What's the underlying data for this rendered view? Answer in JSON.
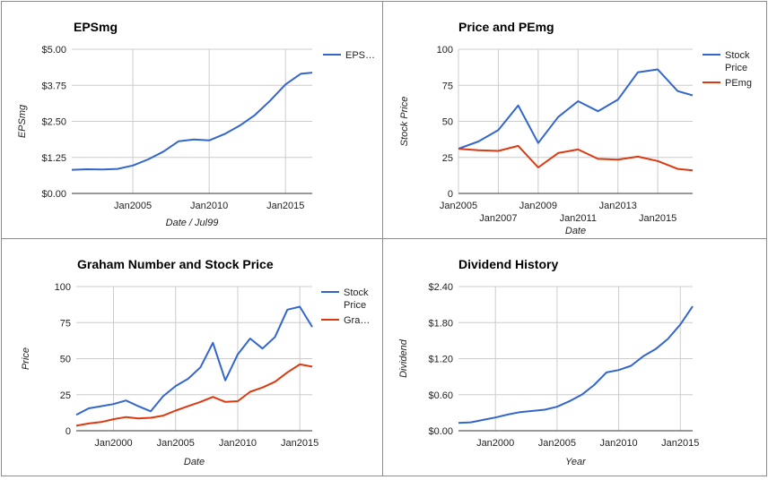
{
  "colors": {
    "blue": "#3366cc",
    "red": "#dc3912",
    "grid": "#cccccc",
    "axis": "#333333"
  },
  "chart_data": [
    {
      "type": "line",
      "title": "EPSmg",
      "xlabel": "Date / Jul99",
      "ylabel": "EPSmg",
      "xlim": [
        "2001-01-01",
        "2016-10-01"
      ],
      "ylim": [
        0,
        5
      ],
      "y_ticks": [
        "$0.00",
        "$1.25",
        "$2.50",
        "$3.75",
        "$5.00"
      ],
      "x_ticks": [
        {
          "label": "Jan2005",
          "at": "2005-01-01"
        },
        {
          "label": "Jan2010",
          "at": "2010-01-01"
        },
        {
          "label": "Jan2015",
          "at": "2015-01-01"
        }
      ],
      "grid": true,
      "legend": "right",
      "series": [
        {
          "name": "EPS…",
          "color": "#3366cc",
          "x": [
            "2001-01-01",
            "2002-01-01",
            "2003-01-01",
            "2004-01-01",
            "2005-01-01",
            "2006-01-01",
            "2007-01-01",
            "2008-01-01",
            "2009-01-01",
            "2010-01-01",
            "2011-01-01",
            "2012-01-01",
            "2013-01-01",
            "2014-01-01",
            "2015-01-01",
            "2016-01-01",
            "2016-10-01"
          ],
          "values": [
            0.82,
            0.84,
            0.83,
            0.85,
            0.97,
            1.18,
            1.45,
            1.81,
            1.87,
            1.84,
            2.06,
            2.35,
            2.72,
            3.22,
            3.78,
            4.15,
            4.19
          ]
        }
      ]
    },
    {
      "type": "line",
      "title": "Price and PEmg",
      "xlabel": "Date",
      "ylabel": "Stock Price",
      "xlim": [
        "2005-01-01",
        "2016-10-01"
      ],
      "ylim": [
        0,
        100
      ],
      "y_ticks": [
        "0",
        "25",
        "50",
        "75",
        "100"
      ],
      "x_ticks": [
        {
          "label": "Jan2005",
          "at": "2005-01-01",
          "row": 1
        },
        {
          "label": "Jan2007",
          "at": "2007-01-01",
          "row": 2
        },
        {
          "label": "Jan2009",
          "at": "2009-01-01",
          "row": 1
        },
        {
          "label": "Jan2011",
          "at": "2011-01-01",
          "row": 2
        },
        {
          "label": "Jan2013",
          "at": "2013-01-01",
          "row": 1
        },
        {
          "label": "Jan2015",
          "at": "2015-01-01",
          "row": 2
        }
      ],
      "grid": true,
      "legend": "right",
      "series": [
        {
          "name": "Stock Price",
          "color": "#3366cc",
          "x": [
            "2005-01-01",
            "2006-01-01",
            "2007-01-01",
            "2008-01-01",
            "2009-01-01",
            "2010-01-01",
            "2011-01-01",
            "2012-01-01",
            "2013-01-01",
            "2014-01-01",
            "2015-01-01",
            "2016-01-01",
            "2016-10-01"
          ],
          "values": [
            31,
            36,
            44,
            61,
            35,
            53,
            64,
            57,
            65,
            84,
            86,
            71,
            68
          ]
        },
        {
          "name": "PEmg",
          "color": "#dc3912",
          "x": [
            "2005-01-01",
            "2006-01-01",
            "2007-01-01",
            "2008-01-01",
            "2009-01-01",
            "2010-01-01",
            "2011-01-01",
            "2012-01-01",
            "2013-01-01",
            "2014-01-01",
            "2015-01-01",
            "2016-01-01",
            "2016-10-01"
          ],
          "values": [
            31,
            30,
            29.5,
            33,
            18,
            28,
            30.5,
            24,
            23.5,
            25.5,
            22.5,
            17,
            16
          ]
        }
      ]
    },
    {
      "type": "line",
      "title": "Graham Number and Stock Price",
      "xlabel": "Date",
      "ylabel": "Price",
      "xlim": [
        "1997-01-01",
        "2016-01-01"
      ],
      "ylim": [
        0,
        100
      ],
      "y_ticks": [
        "0",
        "25",
        "50",
        "75",
        "100"
      ],
      "x_ticks": [
        {
          "label": "Jan2000",
          "at": "2000-01-01"
        },
        {
          "label": "Jan2005",
          "at": "2005-01-01"
        },
        {
          "label": "Jan2010",
          "at": "2010-01-01"
        },
        {
          "label": "Jan2015",
          "at": "2015-01-01"
        }
      ],
      "grid": true,
      "legend": "right",
      "series": [
        {
          "name": "Stock Price",
          "color": "#3366cc",
          "x": [
            "1997-01-01",
            "1998-01-01",
            "1999-01-01",
            "2000-01-01",
            "2001-01-01",
            "2002-01-01",
            "2003-01-01",
            "2004-01-01",
            "2005-01-01",
            "2006-01-01",
            "2007-01-01",
            "2008-01-01",
            "2009-01-01",
            "2010-01-01",
            "2011-01-01",
            "2012-01-01",
            "2013-01-01",
            "2014-01-01",
            "2015-01-01",
            "2016-01-01"
          ],
          "values": [
            11,
            15.5,
            17,
            18.5,
            21,
            17,
            13.5,
            24,
            31,
            36,
            44,
            61,
            35,
            53,
            64,
            57,
            65,
            84,
            86,
            72
          ]
        },
        {
          "name": "Gra…",
          "color": "#dc3912",
          "x": [
            "1997-01-01",
            "1998-01-01",
            "1999-01-01",
            "2000-01-01",
            "2001-01-01",
            "2002-01-01",
            "2003-01-01",
            "2004-01-01",
            "2005-01-01",
            "2006-01-01",
            "2007-01-01",
            "2008-01-01",
            "2009-01-01",
            "2010-01-01",
            "2011-01-01",
            "2012-01-01",
            "2013-01-01",
            "2014-01-01",
            "2015-01-01",
            "2016-01-01"
          ],
          "values": [
            3.5,
            5,
            6,
            8,
            9.5,
            8.5,
            9,
            10.5,
            14,
            17,
            20,
            23.5,
            20,
            20.5,
            27,
            30,
            34,
            40.5,
            46,
            44.5
          ]
        }
      ]
    },
    {
      "type": "line",
      "title": "Dividend History",
      "xlabel": "Year",
      "ylabel": "Dividend",
      "xlim": [
        "1997-01-01",
        "2016-01-01"
      ],
      "ylim": [
        0,
        2.4
      ],
      "y_ticks": [
        "$0.00",
        "$0.60",
        "$1.20",
        "$1.80",
        "$2.40"
      ],
      "x_ticks": [
        {
          "label": "Jan2000",
          "at": "2000-01-01"
        },
        {
          "label": "Jan2005",
          "at": "2005-01-01"
        },
        {
          "label": "Jan2010",
          "at": "2010-01-01"
        },
        {
          "label": "Jan2015",
          "at": "2015-01-01"
        }
      ],
      "grid": true,
      "legend": "none",
      "series": [
        {
          "name": "",
          "color": "#3366cc",
          "x": [
            "1997-01-01",
            "1998-01-01",
            "1999-01-01",
            "2000-01-01",
            "2001-01-01",
            "2002-01-01",
            "2003-01-01",
            "2004-01-01",
            "2005-01-01",
            "2006-01-01",
            "2007-01-01",
            "2008-01-01",
            "2009-01-01",
            "2010-01-01",
            "2011-01-01",
            "2012-01-01",
            "2013-01-01",
            "2014-01-01",
            "2015-01-01",
            "2016-01-01"
          ],
          "values": [
            0.13,
            0.14,
            0.18,
            0.22,
            0.27,
            0.31,
            0.33,
            0.35,
            0.4,
            0.49,
            0.6,
            0.76,
            0.97,
            1.01,
            1.08,
            1.24,
            1.36,
            1.53,
            1.77,
            2.07
          ]
        }
      ]
    }
  ]
}
